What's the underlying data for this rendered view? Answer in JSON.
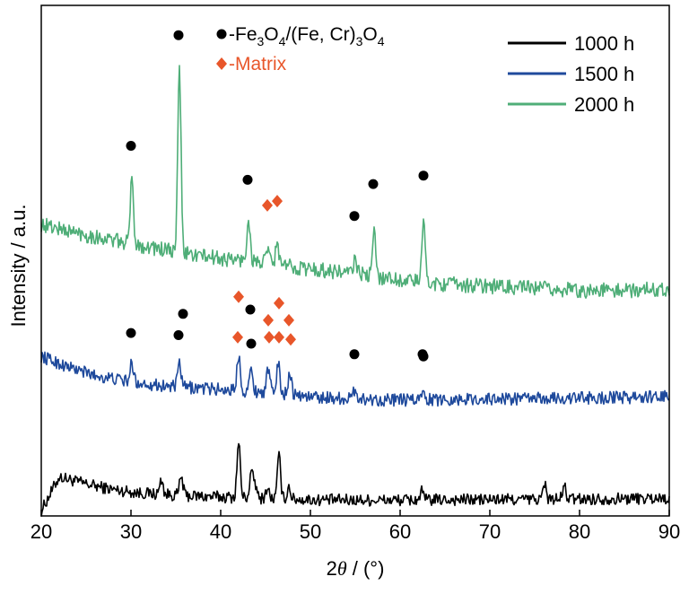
{
  "chart_data": {
    "type": "line",
    "title": "",
    "xlabel_prefix": "2",
    "xlabel_theta": "θ",
    "xlabel_suffix": " / (°)",
    "ylabel": "Intensity / a.u.",
    "xlim": [
      20,
      90
    ],
    "xticks": [
      20,
      30,
      40,
      50,
      60,
      70,
      80,
      90
    ],
    "yticks_shown": false,
    "grid": false,
    "legend_placement": "top-right",
    "annotation_legend": [
      {
        "marker": "circle",
        "color": "#000000",
        "parts": [
          "-Fe",
          "3",
          "O",
          "4",
          "/(Fe, Cr)",
          "3",
          "O",
          "4"
        ]
      },
      {
        "marker": "diamond",
        "color": "#E8562A",
        "text": "-Matrix"
      }
    ],
    "colors": {
      "circle": "#000000",
      "diamond": "#E8562A"
    },
    "series": [
      {
        "name": "1000 h",
        "color": "#000000",
        "baseline": [
          [
            20,
            0.12
          ],
          [
            22,
            0.92
          ],
          [
            25,
            0.75
          ],
          [
            28,
            0.62
          ],
          [
            31,
            0.54
          ],
          [
            34,
            0.5
          ],
          [
            38,
            0.46
          ],
          [
            44,
            0.42
          ],
          [
            50,
            0.38
          ],
          [
            58,
            0.37
          ],
          [
            66,
            0.38
          ],
          [
            74,
            0.39
          ],
          [
            82,
            0.4
          ],
          [
            90,
            0.42
          ]
        ],
        "peaks": [
          {
            "x": 35.6,
            "h": 0.45
          },
          {
            "x": 42.0,
            "h": 1.3
          },
          {
            "x": 43.4,
            "h": 0.55
          },
          {
            "x": 43.8,
            "h": 0.35
          },
          {
            "x": 45.2,
            "h": 0.25
          },
          {
            "x": 46.5,
            "h": 1.0
          },
          {
            "x": 47.6,
            "h": 0.3
          },
          {
            "x": 62.4,
            "h": 0.2
          },
          {
            "x": 33.4,
            "h": 0.35
          },
          {
            "x": 76.1,
            "h": 0.35
          },
          {
            "x": 78.3,
            "h": 0.3
          }
        ],
        "noise": 0.14,
        "markers": [
          {
            "x": 42.0,
            "y": 5.15,
            "type": "diamond"
          },
          {
            "x": 35.8,
            "y": 4.75,
            "type": "circle"
          },
          {
            "x": 43.3,
            "y": 4.85,
            "type": "circle"
          },
          {
            "x": 46.5,
            "y": 5.0,
            "type": "diamond"
          },
          {
            "x": 45.3,
            "y": 4.6,
            "type": "diamond"
          },
          {
            "x": 47.6,
            "y": 4.6,
            "type": "diamond"
          },
          {
            "x": 62.5,
            "y": 3.8,
            "type": "circle"
          }
        ]
      },
      {
        "name": "1500 h",
        "color": "#1F4A9C",
        "baseline": [
          [
            20,
            3.75
          ],
          [
            23,
            3.5
          ],
          [
            26,
            3.3
          ],
          [
            30,
            3.15
          ],
          [
            34,
            3.05
          ],
          [
            38,
            3.0
          ],
          [
            42,
            2.95
          ],
          [
            46,
            2.9
          ],
          [
            50,
            2.8
          ],
          [
            55,
            2.75
          ],
          [
            60,
            2.72
          ],
          [
            70,
            2.75
          ],
          [
            80,
            2.77
          ],
          [
            90,
            2.8
          ]
        ],
        "peaks": [
          {
            "x": 30.1,
            "h": 0.45
          },
          {
            "x": 35.4,
            "h": 0.55
          },
          {
            "x": 42.0,
            "h": 0.85
          },
          {
            "x": 43.4,
            "h": 0.5
          },
          {
            "x": 45.3,
            "h": 0.55
          },
          {
            "x": 46.4,
            "h": 0.7
          },
          {
            "x": 47.7,
            "h": 0.55
          },
          {
            "x": 55.0,
            "h": 0.25
          },
          {
            "x": 62.6,
            "h": 0.3
          }
        ],
        "noise": 0.15,
        "markers": [
          {
            "x": 30.0,
            "y": 4.3,
            "type": "circle"
          },
          {
            "x": 35.3,
            "y": 4.25,
            "type": "circle"
          },
          {
            "x": 41.9,
            "y": 4.2,
            "type": "diamond"
          },
          {
            "x": 43.4,
            "y": 4.05,
            "type": "circle"
          },
          {
            "x": 45.4,
            "y": 4.2,
            "type": "diamond"
          },
          {
            "x": 46.5,
            "y": 4.2,
            "type": "diamond"
          },
          {
            "x": 47.8,
            "y": 4.15,
            "type": "diamond"
          },
          {
            "x": 54.9,
            "y": 3.8,
            "type": "circle"
          },
          {
            "x": 62.6,
            "y": 3.75,
            "type": "circle"
          }
        ]
      },
      {
        "name": "2000 h",
        "color": "#4FAE78",
        "baseline": [
          [
            20,
            6.85
          ],
          [
            25,
            6.6
          ],
          [
            30,
            6.4
          ],
          [
            35,
            6.2
          ],
          [
            40,
            6.05
          ],
          [
            45,
            5.95
          ],
          [
            50,
            5.8
          ],
          [
            55,
            5.7
          ],
          [
            60,
            5.55
          ],
          [
            65,
            5.45
          ],
          [
            70,
            5.4
          ],
          [
            75,
            5.35
          ],
          [
            80,
            5.3
          ],
          [
            85,
            5.3
          ],
          [
            90,
            5.35
          ]
        ],
        "peaks": [
          {
            "x": 30.1,
            "h": 1.5
          },
          {
            "x": 35.4,
            "h": 4.3
          },
          {
            "x": 43.1,
            "h": 1.0
          },
          {
            "x": 45.3,
            "h": 0.3
          },
          {
            "x": 46.3,
            "h": 0.5
          },
          {
            "x": 55.0,
            "h": 0.35
          },
          {
            "x": 57.1,
            "h": 1.0
          },
          {
            "x": 62.6,
            "h": 1.45
          }
        ],
        "noise": 0.18,
        "markers": [
          {
            "x": 30.0,
            "y": 8.7,
            "type": "circle"
          },
          {
            "x": 35.3,
            "y": 11.3,
            "type": "circle"
          },
          {
            "x": 43.0,
            "y": 7.9,
            "type": "circle"
          },
          {
            "x": 45.2,
            "y": 7.3,
            "type": "diamond"
          },
          {
            "x": 46.3,
            "y": 7.4,
            "type": "diamond"
          },
          {
            "x": 54.9,
            "y": 7.05,
            "type": "circle"
          },
          {
            "x": 57.0,
            "y": 7.8,
            "type": "circle"
          },
          {
            "x": 62.6,
            "y": 8.0,
            "type": "circle"
          }
        ]
      }
    ]
  }
}
